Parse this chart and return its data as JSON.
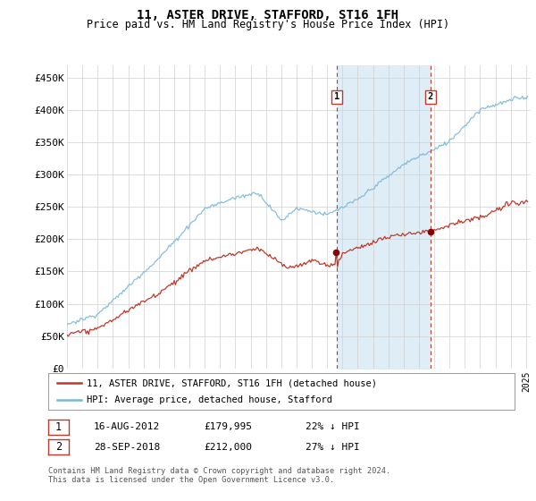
{
  "title": "11, ASTER DRIVE, STAFFORD, ST16 1FH",
  "subtitle": "Price paid vs. HM Land Registry's House Price Index (HPI)",
  "ylim": [
    0,
    470000
  ],
  "yticks": [
    0,
    50000,
    100000,
    150000,
    200000,
    250000,
    300000,
    350000,
    400000,
    450000
  ],
  "ytick_labels": [
    "£0",
    "£50K",
    "£100K",
    "£150K",
    "£200K",
    "£250K",
    "£300K",
    "£350K",
    "£400K",
    "£450K"
  ],
  "hpi_color": "#7ab8d9",
  "price_color": "#c0392b",
  "shaded_color": "#daeaf5",
  "vline_color": "#c0392b",
  "marker_color": "#8b0000",
  "purchase1_date": 2012.62,
  "purchase2_date": 2018.75,
  "purchase1_price": 179995,
  "purchase2_price": 212000,
  "purchase1_label": "1",
  "purchase2_label": "2",
  "legend_line1": "11, ASTER DRIVE, STAFFORD, ST16 1FH (detached house)",
  "legend_line2": "HPI: Average price, detached house, Stafford",
  "table_row1": [
    "1",
    "16-AUG-2012",
    "£179,995",
    "22% ↓ HPI"
  ],
  "table_row2": [
    "2",
    "28-SEP-2018",
    "£212,000",
    "27% ↓ HPI"
  ],
  "footer": "Contains HM Land Registry data © Crown copyright and database right 2024.\nThis data is licensed under the Open Government Licence v3.0.",
  "bg_color": "#ffffff",
  "grid_color": "#d0d0d0",
  "xlim_start": 1995,
  "xlim_end": 2025.3
}
